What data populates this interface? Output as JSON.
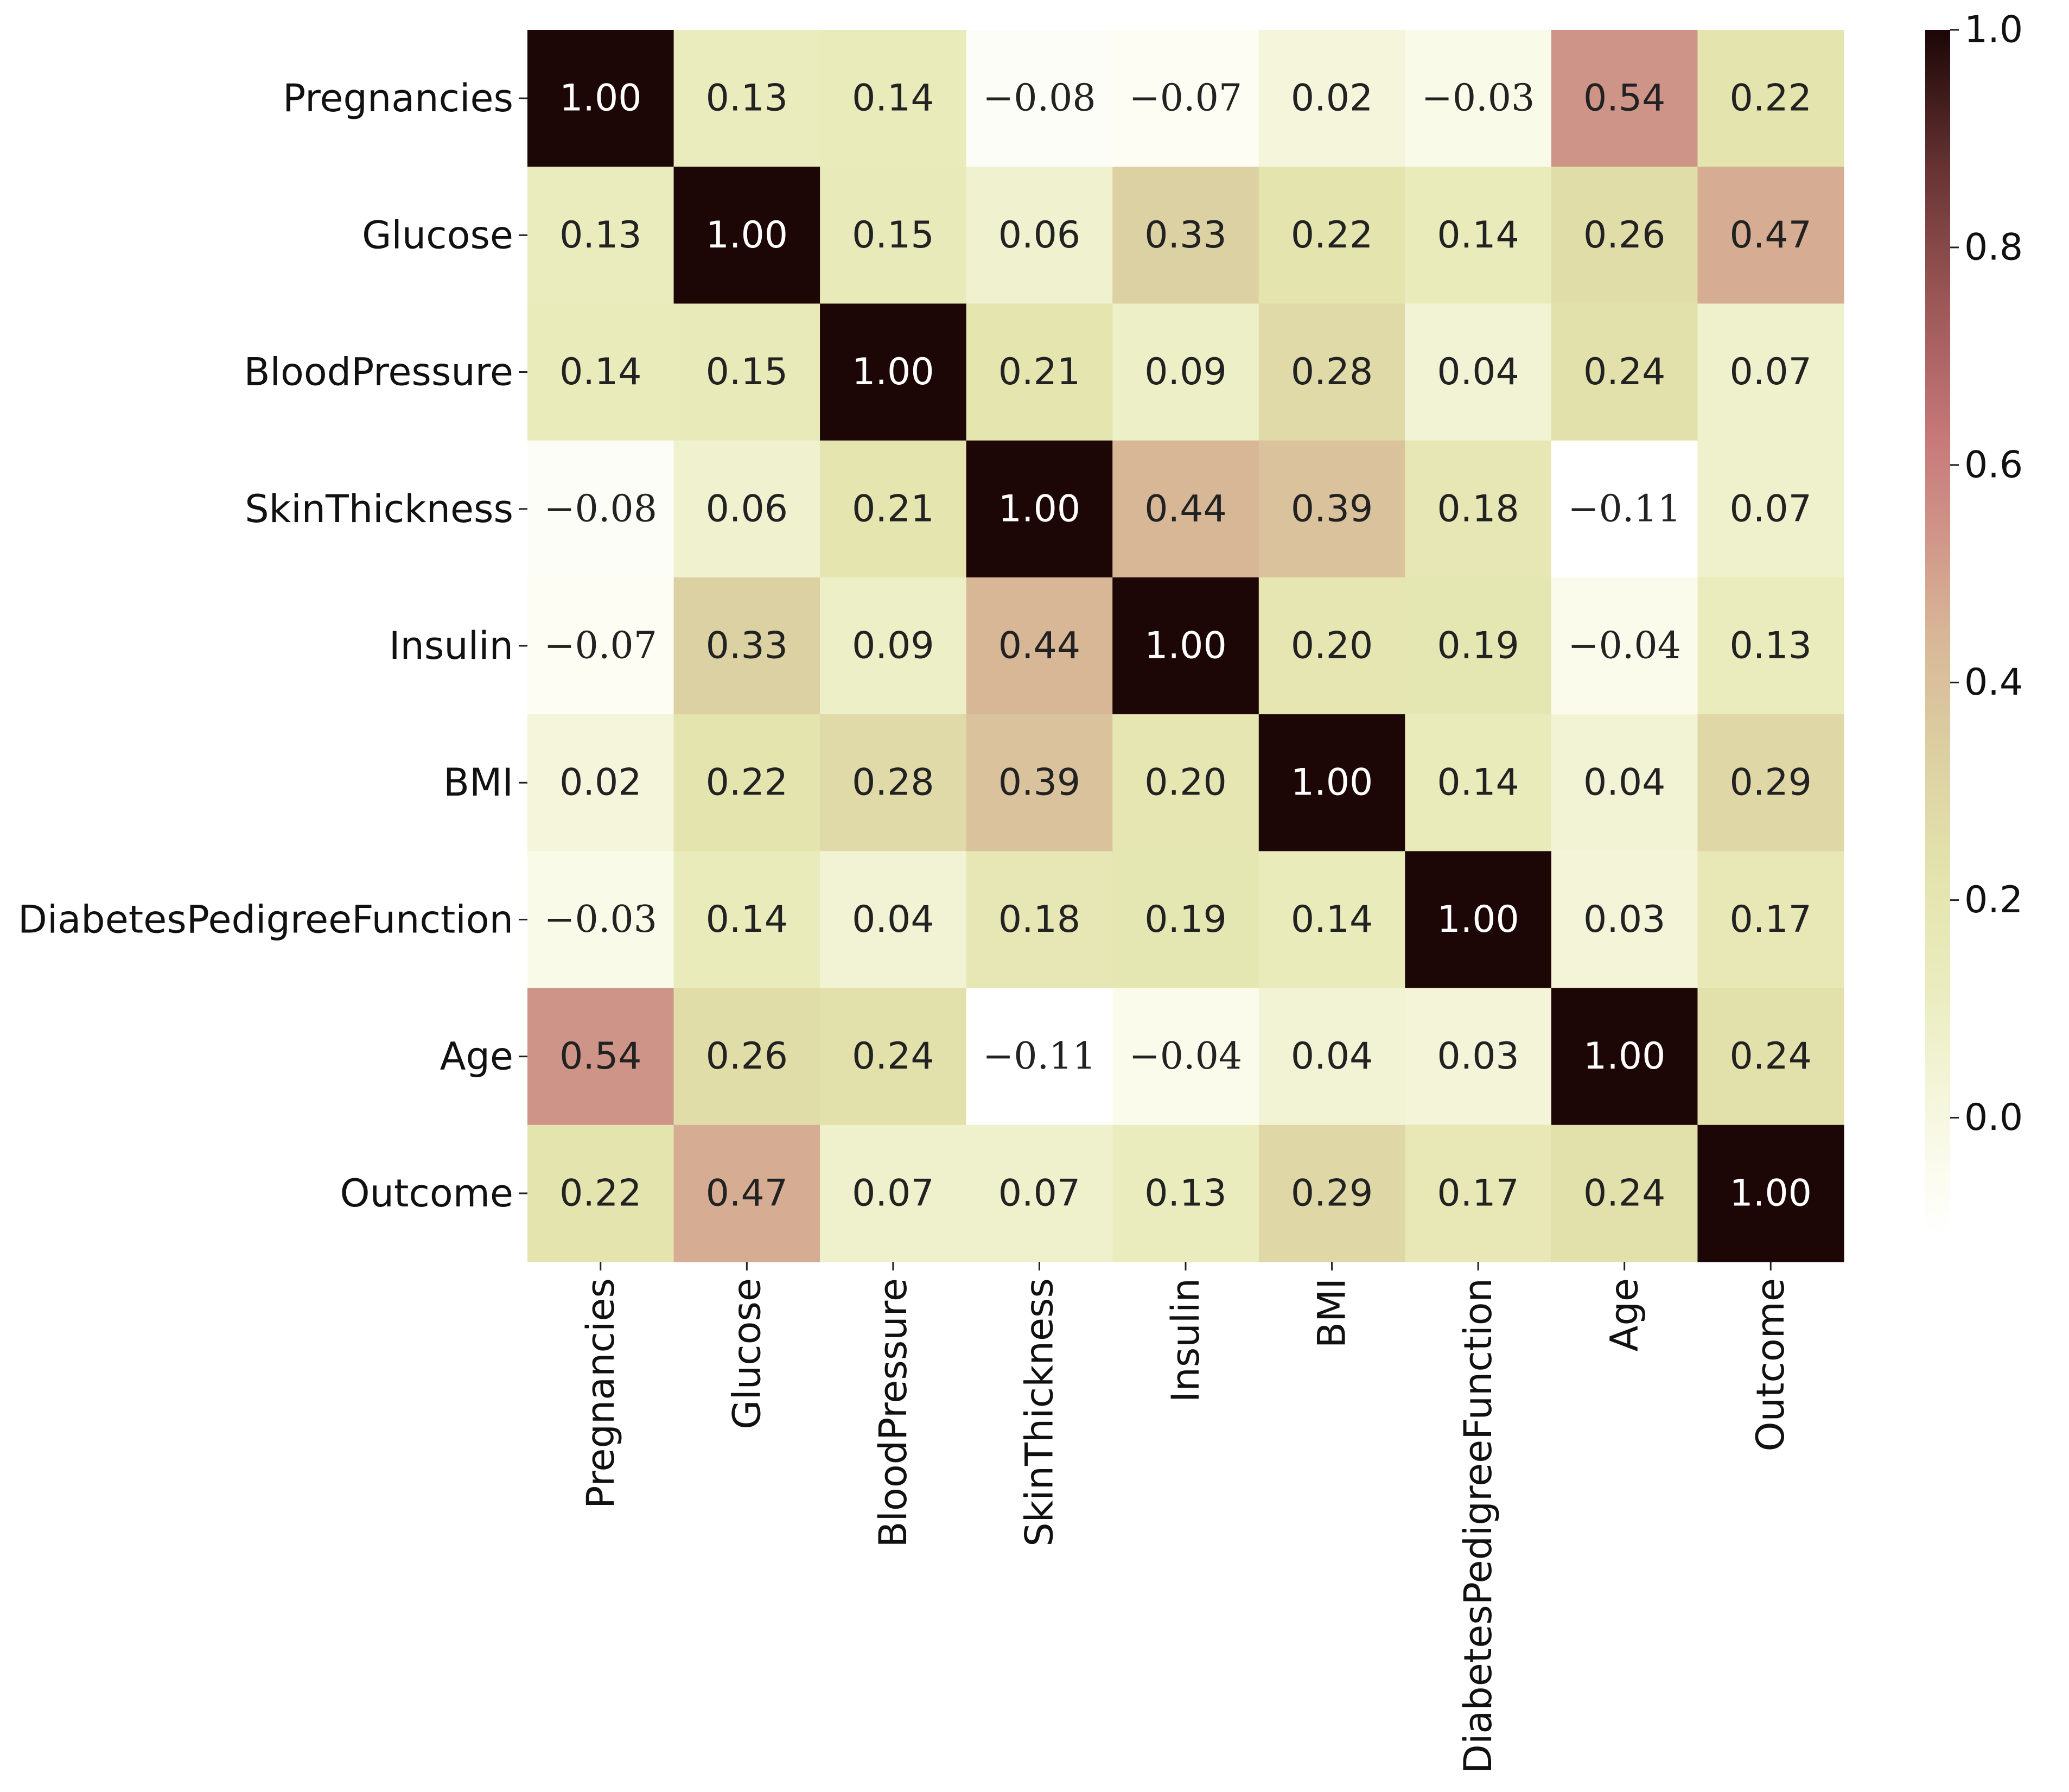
{
  "chart_data": {
    "type": "heatmap",
    "title": "",
    "xlabel": "",
    "ylabel": "",
    "row_labels": [
      "Pregnancies",
      "Glucose",
      "BloodPressure",
      "SkinThickness",
      "Insulin",
      "BMI",
      "DiabetesPedigreeFunction",
      "Age",
      "Outcome"
    ],
    "col_labels": [
      "Pregnancies",
      "Glucose",
      "BloodPressure",
      "SkinThickness",
      "Insulin",
      "BMI",
      "DiabetesPedigreeFunction",
      "Age",
      "Outcome"
    ],
    "values": [
      [
        1.0,
        0.13,
        0.14,
        -0.08,
        -0.07,
        0.02,
        -0.03,
        0.54,
        0.22
      ],
      [
        0.13,
        1.0,
        0.15,
        0.06,
        0.33,
        0.22,
        0.14,
        0.26,
        0.47
      ],
      [
        0.14,
        0.15,
        1.0,
        0.21,
        0.09,
        0.28,
        0.04,
        0.24,
        0.07
      ],
      [
        -0.08,
        0.06,
        0.21,
        1.0,
        0.44,
        0.39,
        0.18,
        -0.11,
        0.07
      ],
      [
        -0.07,
        0.33,
        0.09,
        0.44,
        1.0,
        0.2,
        0.19,
        -0.04,
        0.13
      ],
      [
        0.02,
        0.22,
        0.28,
        0.39,
        0.2,
        1.0,
        0.14,
        0.04,
        0.29
      ],
      [
        -0.03,
        0.14,
        0.04,
        0.18,
        0.19,
        0.14,
        1.0,
        0.03,
        0.17
      ],
      [
        0.54,
        0.26,
        0.24,
        -0.11,
        -0.04,
        0.04,
        0.03,
        1.0,
        0.24
      ],
      [
        0.22,
        0.47,
        0.07,
        0.07,
        0.13,
        0.29,
        0.17,
        0.24,
        1.0
      ]
    ],
    "annotations": [
      [
        "1.00",
        "0.13",
        "0.14",
        "−0.08",
        "−0.07",
        "0.02",
        "−0.03",
        "0.54",
        "0.22"
      ],
      [
        "0.13",
        "1.00",
        "0.15",
        "0.06",
        "0.33",
        "0.22",
        "0.14",
        "0.26",
        "0.47"
      ],
      [
        "0.14",
        "0.15",
        "1.00",
        "0.21",
        "0.09",
        "0.28",
        "0.04",
        "0.24",
        "0.07"
      ],
      [
        "−0.08",
        "0.06",
        "0.21",
        "1.00",
        "0.44",
        "0.39",
        "0.18",
        "−0.11",
        "0.07"
      ],
      [
        "−0.07",
        "0.33",
        "0.09",
        "0.44",
        "1.00",
        "0.20",
        "0.19",
        "−0.04",
        "0.13"
      ],
      [
        "0.02",
        "0.22",
        "0.28",
        "0.39",
        "0.20",
        "1.00",
        "0.14",
        "0.04",
        "0.29"
      ],
      [
        "−0.03",
        "0.14",
        "0.04",
        "0.18",
        "0.19",
        "0.14",
        "1.00",
        "0.03",
        "0.17"
      ],
      [
        "0.54",
        "0.26",
        "0.24",
        "−0.11",
        "−0.04",
        "0.04",
        "0.03",
        "1.00",
        "0.24"
      ],
      [
        "0.22",
        "0.47",
        "0.07",
        "0.07",
        "0.13",
        "0.29",
        "0.17",
        "0.24",
        "1.00"
      ]
    ],
    "colorbar": {
      "vmin": -0.11,
      "vmax": 1.0,
      "ticks": [
        0.0,
        0.2,
        0.4,
        0.6,
        0.8,
        1.0
      ],
      "tick_labels": [
        "0.0",
        "0.2",
        "0.4",
        "0.6",
        "0.8",
        "1.0"
      ],
      "position": "right"
    },
    "colormap_stops": [
      {
        "t": 0.0,
        "color": "#ffffff"
      },
      {
        "t": 0.06,
        "color": "#fbfbed"
      },
      {
        "t": 0.2,
        "color": "#ebedc0"
      },
      {
        "t": 0.3,
        "color": "#e3e4ad"
      },
      {
        "t": 0.4,
        "color": "#dcd0a2"
      },
      {
        "t": 0.5,
        "color": "#d8b697"
      },
      {
        "t": 0.6,
        "color": "#ce8e85"
      },
      {
        "t": 0.66,
        "color": "#c8797a"
      },
      {
        "t": 0.78,
        "color": "#9a5555"
      },
      {
        "t": 0.88,
        "color": "#6a3535"
      },
      {
        "t": 1.0,
        "color": "#1c0606"
      }
    ],
    "grid": false,
    "legend": "none"
  }
}
